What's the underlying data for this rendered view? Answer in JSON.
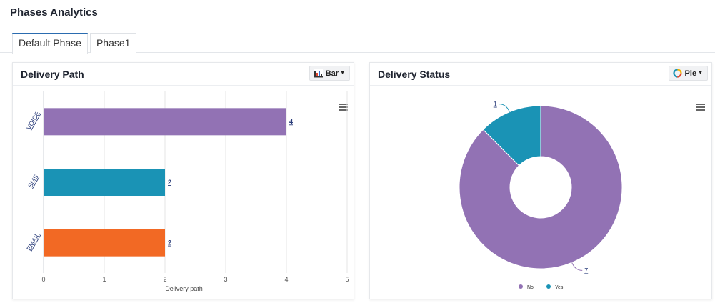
{
  "page": {
    "title": "Phases Analytics"
  },
  "tabs": [
    {
      "label": "Default Phase",
      "active": true
    },
    {
      "label": "Phase1",
      "active": false
    }
  ],
  "delivery_path": {
    "title": "Delivery Path",
    "chart_type_label": "Bar",
    "chart_type_icon": "bar-chart-icon",
    "menu_icon": "hamburger-menu-icon",
    "chart_data": {
      "type": "bar",
      "orientation": "horizontal",
      "categories": [
        "VOICE",
        "SMS",
        "EMAIL"
      ],
      "values": [
        4,
        2,
        2
      ],
      "colors": [
        "#9272b4",
        "#1a93b5",
        "#f26924"
      ],
      "data_labels": [
        "4",
        "2",
        "2"
      ],
      "xlabel": "Delivery path",
      "xlim": [
        0,
        5
      ],
      "xticks": [
        "0",
        "1",
        "2",
        "3",
        "4",
        "5"
      ],
      "grid": true
    }
  },
  "delivery_status": {
    "title": "Delivery Status",
    "chart_type_label": "Pie",
    "chart_type_icon": "donut-chart-icon",
    "menu_icon": "hamburger-menu-icon",
    "chart_data": {
      "type": "pie",
      "donut": true,
      "categories": [
        "No",
        "Yes"
      ],
      "values": [
        7,
        1
      ],
      "colors": [
        "#9272b4",
        "#1a93b5"
      ],
      "data_labels": [
        "7",
        "1"
      ],
      "legend": {
        "position": "bottom",
        "entries": [
          "No",
          "Yes"
        ]
      }
    }
  }
}
